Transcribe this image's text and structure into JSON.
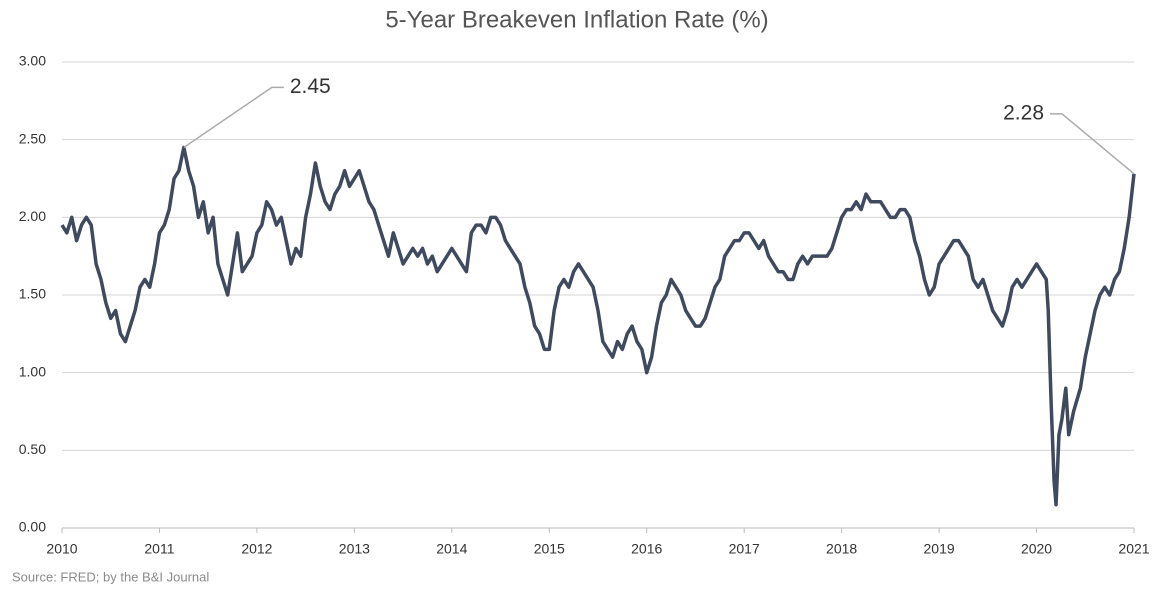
{
  "chart_data": {
    "type": "line",
    "title": "5-Year Breakeven Inflation Rate (%)",
    "source": "Source: FRED; by the B&I Journal",
    "x": [
      2010,
      2010.05,
      2010.1,
      2010.15,
      2010.2,
      2010.25,
      2010.3,
      2010.35,
      2010.4,
      2010.45,
      2010.5,
      2010.55,
      2010.6,
      2010.65,
      2010.7,
      2010.75,
      2010.8,
      2010.85,
      2010.9,
      2010.95,
      2011,
      2011.05,
      2011.1,
      2011.15,
      2011.2,
      2011.25,
      2011.3,
      2011.35,
      2011.4,
      2011.45,
      2011.5,
      2011.55,
      2011.6,
      2011.65,
      2011.7,
      2011.75,
      2011.8,
      2011.85,
      2011.9,
      2011.95,
      2012,
      2012.05,
      2012.1,
      2012.15,
      2012.2,
      2012.25,
      2012.3,
      2012.35,
      2012.4,
      2012.45,
      2012.5,
      2012.55,
      2012.6,
      2012.65,
      2012.7,
      2012.75,
      2012.8,
      2012.85,
      2012.9,
      2012.95,
      2013,
      2013.05,
      2013.1,
      2013.15,
      2013.2,
      2013.25,
      2013.3,
      2013.35,
      2013.4,
      2013.45,
      2013.5,
      2013.55,
      2013.6,
      2013.65,
      2013.7,
      2013.75,
      2013.8,
      2013.85,
      2013.9,
      2013.95,
      2014,
      2014.05,
      2014.1,
      2014.15,
      2014.2,
      2014.25,
      2014.3,
      2014.35,
      2014.4,
      2014.45,
      2014.5,
      2014.55,
      2014.6,
      2014.65,
      2014.7,
      2014.75,
      2014.8,
      2014.85,
      2014.9,
      2014.95,
      2015,
      2015.05,
      2015.1,
      2015.15,
      2015.2,
      2015.25,
      2015.3,
      2015.35,
      2015.4,
      2015.45,
      2015.5,
      2015.55,
      2015.6,
      2015.65,
      2015.7,
      2015.75,
      2015.8,
      2015.85,
      2015.9,
      2015.95,
      2016,
      2016.05,
      2016.1,
      2016.15,
      2016.2,
      2016.25,
      2016.3,
      2016.35,
      2016.4,
      2016.45,
      2016.5,
      2016.55,
      2016.6,
      2016.65,
      2016.7,
      2016.75,
      2016.8,
      2016.85,
      2016.9,
      2016.95,
      2017,
      2017.05,
      2017.1,
      2017.15,
      2017.2,
      2017.25,
      2017.3,
      2017.35,
      2017.4,
      2017.45,
      2017.5,
      2017.55,
      2017.6,
      2017.65,
      2017.7,
      2017.75,
      2017.8,
      2017.85,
      2017.9,
      2017.95,
      2018,
      2018.05,
      2018.1,
      2018.15,
      2018.2,
      2018.25,
      2018.3,
      2018.35,
      2018.4,
      2018.45,
      2018.5,
      2018.55,
      2018.6,
      2018.65,
      2018.7,
      2018.75,
      2018.8,
      2018.85,
      2018.9,
      2018.95,
      2019,
      2019.05,
      2019.1,
      2019.15,
      2019.2,
      2019.25,
      2019.3,
      2019.35,
      2019.4,
      2019.45,
      2019.5,
      2019.55,
      2019.6,
      2019.65,
      2019.7,
      2019.75,
      2019.8,
      2019.85,
      2019.9,
      2019.95,
      2020,
      2020.05,
      2020.1,
      2020.12,
      2020.15,
      2020.18,
      2020.2,
      2020.23,
      2020.26,
      2020.3,
      2020.33,
      2020.38,
      2020.45,
      2020.5,
      2020.55,
      2020.6,
      2020.65,
      2020.7,
      2020.75,
      2020.8,
      2020.85,
      2020.9,
      2020.95,
      2021
    ],
    "values": [
      1.95,
      1.9,
      2.0,
      1.85,
      1.95,
      2.0,
      1.95,
      1.7,
      1.6,
      1.45,
      1.35,
      1.4,
      1.25,
      1.2,
      1.3,
      1.4,
      1.55,
      1.6,
      1.55,
      1.7,
      1.9,
      1.95,
      2.05,
      2.25,
      2.3,
      2.45,
      2.3,
      2.2,
      2.0,
      2.1,
      1.9,
      2.0,
      1.7,
      1.6,
      1.5,
      1.7,
      1.9,
      1.65,
      1.7,
      1.75,
      1.9,
      1.95,
      2.1,
      2.05,
      1.95,
      2.0,
      1.85,
      1.7,
      1.8,
      1.75,
      2.0,
      2.15,
      2.35,
      2.2,
      2.1,
      2.05,
      2.15,
      2.2,
      2.3,
      2.2,
      2.25,
      2.3,
      2.2,
      2.1,
      2.05,
      1.95,
      1.85,
      1.75,
      1.9,
      1.8,
      1.7,
      1.75,
      1.8,
      1.75,
      1.8,
      1.7,
      1.75,
      1.65,
      1.7,
      1.75,
      1.8,
      1.75,
      1.7,
      1.65,
      1.9,
      1.95,
      1.95,
      1.9,
      2.0,
      2.0,
      1.95,
      1.85,
      1.8,
      1.75,
      1.7,
      1.55,
      1.45,
      1.3,
      1.25,
      1.15,
      1.15,
      1.4,
      1.55,
      1.6,
      1.55,
      1.65,
      1.7,
      1.65,
      1.6,
      1.55,
      1.4,
      1.2,
      1.15,
      1.1,
      1.2,
      1.15,
      1.25,
      1.3,
      1.2,
      1.15,
      1.0,
      1.1,
      1.3,
      1.45,
      1.5,
      1.6,
      1.55,
      1.5,
      1.4,
      1.35,
      1.3,
      1.3,
      1.35,
      1.45,
      1.55,
      1.6,
      1.75,
      1.8,
      1.85,
      1.85,
      1.9,
      1.9,
      1.85,
      1.8,
      1.85,
      1.75,
      1.7,
      1.65,
      1.65,
      1.6,
      1.6,
      1.7,
      1.75,
      1.7,
      1.75,
      1.75,
      1.75,
      1.75,
      1.8,
      1.9,
      2.0,
      2.05,
      2.05,
      2.1,
      2.05,
      2.15,
      2.1,
      2.1,
      2.1,
      2.05,
      2.0,
      2.0,
      2.05,
      2.05,
      2.0,
      1.85,
      1.75,
      1.6,
      1.5,
      1.55,
      1.7,
      1.75,
      1.8,
      1.85,
      1.85,
      1.8,
      1.75,
      1.6,
      1.55,
      1.6,
      1.5,
      1.4,
      1.35,
      1.3,
      1.4,
      1.55,
      1.6,
      1.55,
      1.6,
      1.65,
      1.7,
      1.65,
      1.6,
      1.4,
      0.8,
      0.3,
      0.15,
      0.6,
      0.7,
      0.9,
      0.6,
      0.75,
      0.9,
      1.1,
      1.25,
      1.4,
      1.5,
      1.55,
      1.5,
      1.6,
      1.65,
      1.8,
      2.0,
      2.28
    ],
    "color": "#3f4a5e",
    "xlim": [
      2010,
      2021
    ],
    "xticks": [
      2010,
      2011,
      2012,
      2013,
      2014,
      2015,
      2016,
      2017,
      2018,
      2019,
      2020,
      2021
    ],
    "ylim": [
      0,
      3
    ],
    "yticks": [
      {
        "value": 0,
        "label": "0.00"
      },
      {
        "value": 0.5,
        "label": "0.50"
      },
      {
        "value": 1,
        "label": "1.00"
      },
      {
        "value": 1.5,
        "label": "1.50"
      },
      {
        "value": 2,
        "label": "2.00"
      },
      {
        "value": 2.5,
        "label": "2.50"
      },
      {
        "value": 3,
        "label": "3.00"
      }
    ],
    "grid": true,
    "annotations": [
      {
        "text": "2.45",
        "x": 2011.25,
        "y": 2.45
      },
      {
        "text": "2.28",
        "x": 2021,
        "y": 2.28
      }
    ]
  }
}
